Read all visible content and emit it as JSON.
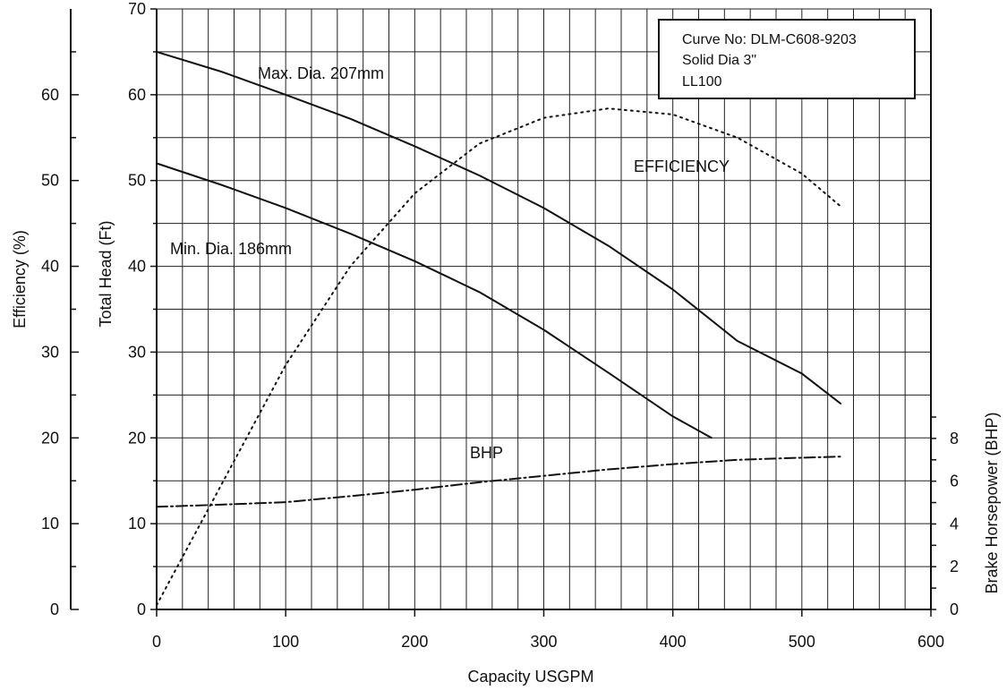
{
  "chart_data": {
    "type": "line",
    "xlabel": "Capacity USGPM",
    "x_ticks": [
      "0",
      "100",
      "200",
      "300",
      "400",
      "500",
      "600"
    ],
    "xlim": [
      0,
      600
    ],
    "axes": {
      "efficiency": {
        "label": "Efficiency (%)",
        "ticks": [
          "0",
          "10",
          "20",
          "30",
          "40",
          "50",
          "60"
        ],
        "ylim": [
          0,
          70
        ]
      },
      "head": {
        "label": "Total Head (Ft)",
        "ticks": [
          "0",
          "10",
          "20",
          "30",
          "40",
          "50",
          "60",
          "70"
        ],
        "ylim": [
          0,
          70
        ]
      },
      "bhp": {
        "label": "Brake Horsepower (BHP)",
        "ticks": [
          "0",
          "2",
          "4",
          "6",
          "8"
        ],
        "ylim": [
          0,
          8
        ]
      }
    },
    "grid": true,
    "info_box": [
      "Curve No: DLM-C608-9203",
      "Solid Dia  3\"",
      "LL100"
    ],
    "series": [
      {
        "name": "Max. Dia. 207mm",
        "axis": "head",
        "style": "solid",
        "x": [
          0,
          50,
          100,
          150,
          200,
          250,
          300,
          350,
          400,
          450,
          500,
          530
        ],
        "y": [
          65,
          62.7,
          60,
          57.2,
          54,
          50.6,
          46.8,
          42.4,
          37.3,
          31.3,
          27.5,
          24
        ]
      },
      {
        "name": "Min. Dia. 186mm",
        "axis": "head",
        "style": "solid",
        "x": [
          0,
          50,
          100,
          150,
          200,
          250,
          300,
          350,
          400,
          430
        ],
        "y": [
          52,
          49.5,
          46.8,
          43.8,
          40.6,
          37,
          32.6,
          27.6,
          22.5,
          20
        ]
      },
      {
        "name": "EFFICIENCY",
        "axis": "efficiency",
        "style": "dotted",
        "x": [
          0,
          50,
          100,
          150,
          200,
          250,
          300,
          350,
          400,
          450,
          500,
          530
        ],
        "y": [
          0.5,
          14.5,
          28.5,
          40,
          48.5,
          54.3,
          57.3,
          58.4,
          57.7,
          55,
          50.8,
          47
        ]
      },
      {
        "name": "BHP",
        "axis": "bhp",
        "style": "dashdot",
        "x": [
          0,
          50,
          100,
          150,
          200,
          250,
          300,
          350,
          400,
          450,
          500,
          530
        ],
        "y": [
          4.8,
          4.9,
          5.02,
          5.3,
          5.6,
          5.95,
          6.25,
          6.55,
          6.8,
          7.0,
          7.1,
          7.15
        ]
      }
    ]
  }
}
